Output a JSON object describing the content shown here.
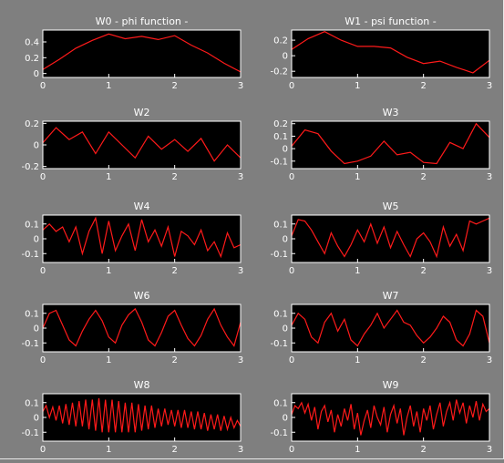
{
  "figure": {
    "background": "#808080",
    "axes_background": "#000000",
    "line_color": "#ff1a1a",
    "text_color": "#ffffff"
  },
  "chart_data": [
    {
      "type": "line",
      "title": "W0  - phi function -",
      "xlim": [
        0,
        3
      ],
      "ylim": [
        -0.05,
        0.55
      ],
      "xticks": [
        0,
        1,
        2,
        3
      ],
      "yticks": [
        0,
        0.2,
        0.4
      ],
      "x": [
        0,
        0.25,
        0.5,
        0.75,
        1.0,
        1.25,
        1.5,
        1.75,
        2.0,
        2.25,
        2.5,
        2.75,
        3.0
      ],
      "series": [
        {
          "values": [
            0.05,
            0.18,
            0.32,
            0.42,
            0.5,
            0.44,
            0.47,
            0.43,
            0.48,
            0.36,
            0.26,
            0.13,
            0.02
          ]
        }
      ]
    },
    {
      "type": "line",
      "title": "W1  - psi function -",
      "xlim": [
        0,
        3
      ],
      "ylim": [
        -0.28,
        0.33
      ],
      "xticks": [
        0,
        1,
        2,
        3
      ],
      "yticks": [
        -0.2,
        0,
        0.2
      ],
      "x": [
        0,
        0.25,
        0.5,
        0.75,
        1.0,
        1.25,
        1.5,
        1.75,
        2.0,
        2.25,
        2.5,
        2.75,
        3.0
      ],
      "series": [
        {
          "values": [
            0.08,
            0.22,
            0.31,
            0.2,
            0.12,
            0.12,
            0.1,
            -0.02,
            -0.1,
            -0.07,
            -0.15,
            -0.22,
            -0.06
          ]
        }
      ]
    },
    {
      "type": "line",
      "title": "W2",
      "xlim": [
        0,
        3
      ],
      "ylim": [
        -0.22,
        0.22
      ],
      "xticks": [
        0,
        1,
        2,
        3
      ],
      "yticks": [
        -0.2,
        0,
        0.2
      ],
      "x": [
        0,
        0.2,
        0.4,
        0.6,
        0.8,
        1.0,
        1.2,
        1.4,
        1.6,
        1.8,
        2.0,
        2.2,
        2.4,
        2.6,
        2.8,
        3.0
      ],
      "series": [
        {
          "values": [
            0.02,
            0.16,
            0.05,
            0.12,
            -0.08,
            0.12,
            0.0,
            -0.12,
            0.08,
            -0.04,
            0.05,
            -0.06,
            0.06,
            -0.15,
            0.0,
            -0.12
          ]
        }
      ]
    },
    {
      "type": "line",
      "title": "W3",
      "xlim": [
        0,
        3
      ],
      "ylim": [
        -0.16,
        0.22
      ],
      "xticks": [
        0,
        1,
        2,
        3
      ],
      "yticks": [
        -0.1,
        0,
        0.1,
        0.2
      ],
      "x": [
        0,
        0.2,
        0.4,
        0.6,
        0.8,
        1.0,
        1.2,
        1.4,
        1.6,
        1.8,
        2.0,
        2.2,
        2.4,
        2.6,
        2.8,
        3.0
      ],
      "series": [
        {
          "values": [
            0.02,
            0.15,
            0.12,
            -0.02,
            -0.12,
            -0.1,
            -0.06,
            0.06,
            -0.05,
            -0.03,
            -0.11,
            -0.12,
            0.05,
            0.0,
            0.2,
            0.09
          ]
        }
      ]
    },
    {
      "type": "line",
      "title": "W4",
      "xlim": [
        0,
        3
      ],
      "ylim": [
        -0.16,
        0.16
      ],
      "xticks": [
        0,
        1,
        2,
        3
      ],
      "yticks": [
        -0.1,
        0,
        0.1
      ],
      "x": [
        0,
        0.1,
        0.2,
        0.3,
        0.4,
        0.5,
        0.6,
        0.7,
        0.8,
        0.9,
        1.0,
        1.1,
        1.2,
        1.3,
        1.4,
        1.5,
        1.6,
        1.7,
        1.8,
        1.9,
        2.0,
        2.1,
        2.2,
        2.3,
        2.4,
        2.5,
        2.6,
        2.7,
        2.8,
        2.9,
        3.0
      ],
      "series": [
        {
          "values": [
            0.06,
            0.1,
            0.05,
            0.08,
            -0.02,
            0.08,
            -0.1,
            0.05,
            0.14,
            -0.1,
            0.12,
            -0.08,
            0.02,
            0.1,
            -0.08,
            0.13,
            -0.02,
            0.06,
            -0.05,
            0.08,
            -0.12,
            0.05,
            0.02,
            -0.04,
            0.06,
            -0.08,
            -0.02,
            -0.12,
            0.04,
            -0.06,
            -0.04
          ]
        }
      ]
    },
    {
      "type": "line",
      "title": "W5",
      "xlim": [
        0,
        3
      ],
      "ylim": [
        -0.16,
        0.16
      ],
      "xticks": [
        0,
        1,
        2,
        3
      ],
      "yticks": [
        -0.1,
        0,
        0.1
      ],
      "x": [
        0,
        0.1,
        0.2,
        0.3,
        0.4,
        0.5,
        0.6,
        0.7,
        0.8,
        0.9,
        1.0,
        1.1,
        1.2,
        1.3,
        1.4,
        1.5,
        1.6,
        1.7,
        1.8,
        1.9,
        2.0,
        2.1,
        2.2,
        2.3,
        2.4,
        2.5,
        2.6,
        2.7,
        2.8,
        2.9,
        3.0
      ],
      "series": [
        {
          "values": [
            0.02,
            0.13,
            0.12,
            0.06,
            -0.02,
            -0.1,
            0.04,
            -0.05,
            -0.12,
            -0.04,
            0.06,
            -0.02,
            0.1,
            -0.03,
            0.08,
            -0.06,
            0.05,
            -0.04,
            -0.12,
            0.0,
            0.04,
            -0.02,
            -0.12,
            0.08,
            -0.05,
            0.03,
            -0.08,
            0.12,
            0.1,
            0.12,
            0.14
          ]
        }
      ]
    },
    {
      "type": "line",
      "title": "W6",
      "xlim": [
        0,
        3
      ],
      "ylim": [
        -0.16,
        0.16
      ],
      "xticks": [
        0,
        1,
        2,
        3
      ],
      "yticks": [
        -0.1,
        0,
        0.1
      ],
      "x": [
        0,
        0.1,
        0.2,
        0.3,
        0.4,
        0.5,
        0.6,
        0.7,
        0.8,
        0.9,
        1.0,
        1.1,
        1.2,
        1.3,
        1.4,
        1.5,
        1.6,
        1.7,
        1.8,
        1.9,
        2.0,
        2.1,
        2.2,
        2.3,
        2.4,
        2.5,
        2.6,
        2.7,
        2.8,
        2.9,
        3.0
      ],
      "series": [
        {
          "values": [
            0.0,
            0.1,
            0.12,
            0.02,
            -0.08,
            -0.12,
            -0.02,
            0.06,
            0.12,
            0.05,
            -0.06,
            -0.1,
            0.02,
            0.09,
            0.13,
            0.04,
            -0.08,
            -0.12,
            -0.03,
            0.08,
            0.12,
            0.02,
            -0.07,
            -0.12,
            -0.05,
            0.06,
            0.13,
            0.02,
            -0.06,
            -0.12,
            0.04
          ]
        }
      ]
    },
    {
      "type": "line",
      "title": "W7",
      "xlim": [
        0,
        3
      ],
      "ylim": [
        -0.16,
        0.16
      ],
      "xticks": [
        0,
        1,
        2,
        3
      ],
      "yticks": [
        -0.1,
        0,
        0.1
      ],
      "x": [
        0,
        0.1,
        0.2,
        0.3,
        0.4,
        0.5,
        0.6,
        0.7,
        0.8,
        0.9,
        1.0,
        1.1,
        1.2,
        1.3,
        1.4,
        1.5,
        1.6,
        1.7,
        1.8,
        1.9,
        2.0,
        2.1,
        2.2,
        2.3,
        2.4,
        2.5,
        2.6,
        2.7,
        2.8,
        2.9,
        3.0
      ],
      "series": [
        {
          "values": [
            0.02,
            0.1,
            0.06,
            -0.06,
            -0.1,
            0.04,
            0.1,
            -0.02,
            0.06,
            -0.08,
            -0.12,
            -0.04,
            0.02,
            0.1,
            0.0,
            0.06,
            0.12,
            0.04,
            0.02,
            -0.05,
            -0.1,
            -0.06,
            0.0,
            0.08,
            0.04,
            -0.08,
            -0.12,
            -0.04,
            0.12,
            0.08,
            -0.1
          ]
        }
      ]
    },
    {
      "type": "line",
      "title": "W8",
      "xlim": [
        0,
        3
      ],
      "ylim": [
        -0.16,
        0.16
      ],
      "xticks": [
        0,
        1,
        2,
        3
      ],
      "yticks": [
        -0.1,
        0,
        0.1
      ],
      "x": [
        0,
        0.05,
        0.1,
        0.15,
        0.2,
        0.25,
        0.3,
        0.35,
        0.4,
        0.45,
        0.5,
        0.55,
        0.6,
        0.65,
        0.7,
        0.75,
        0.8,
        0.85,
        0.9,
        0.95,
        1.0,
        1.05,
        1.1,
        1.15,
        1.2,
        1.25,
        1.3,
        1.35,
        1.4,
        1.45,
        1.5,
        1.55,
        1.6,
        1.65,
        1.7,
        1.75,
        1.8,
        1.85,
        1.9,
        1.95,
        2.0,
        2.05,
        2.1,
        2.15,
        2.2,
        2.25,
        2.3,
        2.35,
        2.4,
        2.45,
        2.5,
        2.55,
        2.6,
        2.65,
        2.7,
        2.75,
        2.8,
        2.85,
        2.9,
        2.95,
        3.0
      ],
      "series": [
        {
          "values": [
            0.04,
            0.08,
            0.0,
            0.07,
            -0.02,
            0.08,
            -0.04,
            0.09,
            -0.05,
            0.1,
            -0.06,
            0.11,
            -0.06,
            0.12,
            -0.08,
            0.12,
            -0.09,
            0.13,
            -0.1,
            0.12,
            -0.1,
            0.12,
            -0.1,
            0.11,
            -0.1,
            0.1,
            -0.1,
            0.1,
            -0.1,
            0.09,
            -0.09,
            0.08,
            -0.08,
            0.08,
            -0.07,
            0.06,
            -0.06,
            0.06,
            -0.05,
            0.05,
            -0.06,
            0.05,
            -0.07,
            0.05,
            -0.07,
            0.04,
            -0.08,
            0.04,
            -0.08,
            0.03,
            -0.09,
            0.02,
            -0.08,
            0.02,
            -0.09,
            0.01,
            -0.08,
            0.0,
            -0.07,
            -0.02,
            -0.06
          ]
        }
      ]
    },
    {
      "type": "line",
      "title": "W9",
      "xlim": [
        0,
        3
      ],
      "ylim": [
        -0.16,
        0.16
      ],
      "xticks": [
        0,
        1,
        2,
        3
      ],
      "yticks": [
        -0.1,
        0,
        0.1
      ],
      "x": [
        0,
        0.05,
        0.1,
        0.15,
        0.2,
        0.25,
        0.3,
        0.35,
        0.4,
        0.45,
        0.5,
        0.55,
        0.6,
        0.65,
        0.7,
        0.75,
        0.8,
        0.85,
        0.9,
        0.95,
        1.0,
        1.05,
        1.1,
        1.15,
        1.2,
        1.25,
        1.3,
        1.35,
        1.4,
        1.45,
        1.5,
        1.55,
        1.6,
        1.65,
        1.7,
        1.75,
        1.8,
        1.85,
        1.9,
        1.95,
        2.0,
        2.05,
        2.1,
        2.15,
        2.2,
        2.25,
        2.3,
        2.35,
        2.4,
        2.45,
        2.5,
        2.55,
        2.6,
        2.65,
        2.7,
        2.75,
        2.8,
        2.85,
        2.9,
        2.95,
        3.0
      ],
      "series": [
        {
          "values": [
            0.02,
            0.08,
            0.06,
            0.1,
            0.03,
            0.09,
            -0.02,
            0.07,
            -0.08,
            0.04,
            0.08,
            -0.03,
            0.05,
            -0.1,
            0.02,
            -0.06,
            0.06,
            -0.02,
            0.09,
            -0.08,
            0.03,
            -0.12,
            -0.02,
            0.05,
            -0.07,
            0.08,
            0.0,
            -0.05,
            0.07,
            -0.1,
            0.02,
            0.08,
            -0.04,
            0.06,
            -0.12,
            0.0,
            0.08,
            -0.06,
            0.04,
            -0.1,
            0.06,
            -0.02,
            0.08,
            -0.08,
            0.02,
            0.1,
            -0.06,
            0.04,
            0.1,
            -0.02,
            0.12,
            0.03,
            0.1,
            -0.04,
            0.08,
            0.0,
            0.11,
            -0.02,
            0.09,
            0.04,
            0.06
          ]
        }
      ]
    }
  ]
}
